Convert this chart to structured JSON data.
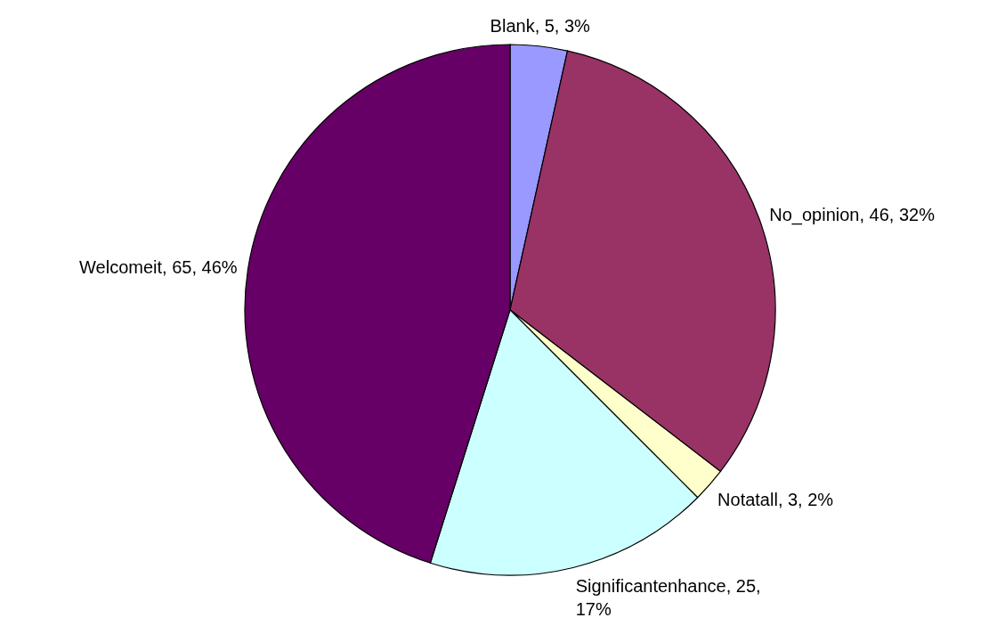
{
  "chart_data": {
    "type": "pie",
    "categories": [
      "Blank",
      "No_opinion",
      "Notatall",
      "Significantenhance",
      "Welcomeit"
    ],
    "values": [
      5,
      46,
      3,
      25,
      65
    ],
    "colors": [
      "#9999ff",
      "#993366",
      "#ffffcc",
      "#ccffff",
      "#660066"
    ],
    "value_labels": [
      "5, 3%",
      "46, 32%",
      "3, 2%",
      "25, 17%",
      "65, 46%"
    ]
  }
}
